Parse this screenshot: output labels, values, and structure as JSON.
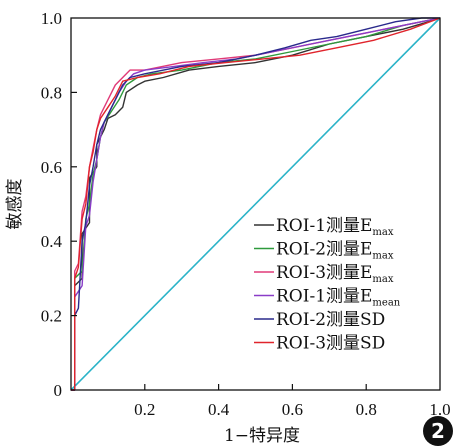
{
  "chart_data": {
    "type": "line",
    "title": "",
    "xlabel": "1−特异度",
    "ylabel": "敏感度",
    "xlim": [
      0,
      1
    ],
    "ylim": [
      0,
      1
    ],
    "xticks": [
      "0.2",
      "0.4",
      "0.6",
      "0.8",
      "1.0"
    ],
    "yticks": [
      "0",
      "0.2",
      "0.4",
      "0.6",
      "0.8",
      "1.0"
    ],
    "grid": false,
    "legend_position": "bottom-right",
    "reference_line": {
      "x": [
        0,
        1
      ],
      "y": [
        0,
        1
      ],
      "color": "#2bb3c8"
    },
    "series": [
      {
        "name": "ROI-1测量E",
        "sub": "max",
        "color": "#333333",
        "x": [
          0,
          0.01,
          0.01,
          0.03,
          0.03,
          0.05,
          0.05,
          0.07,
          0.07,
          0.09,
          0.1,
          0.12,
          0.14,
          0.15,
          0.18,
          0.2,
          0.25,
          0.32,
          0.4,
          0.5,
          0.6,
          0.7,
          0.8,
          0.9,
          0.97,
          1.0
        ],
        "y": [
          0,
          0,
          0.28,
          0.3,
          0.42,
          0.45,
          0.57,
          0.6,
          0.66,
          0.7,
          0.73,
          0.74,
          0.76,
          0.8,
          0.82,
          0.83,
          0.84,
          0.86,
          0.87,
          0.88,
          0.9,
          0.93,
          0.95,
          0.97,
          0.99,
          1.0
        ]
      },
      {
        "name": "ROI-2测量E",
        "sub": "max",
        "color": "#2e9a3c",
        "x": [
          0,
          0.01,
          0.01,
          0.03,
          0.04,
          0.05,
          0.06,
          0.07,
          0.08,
          0.09,
          0.11,
          0.13,
          0.15,
          0.18,
          0.22,
          0.3,
          0.4,
          0.5,
          0.6,
          0.7,
          0.8,
          0.9,
          1.0
        ],
        "y": [
          0,
          0,
          0.3,
          0.32,
          0.46,
          0.5,
          0.58,
          0.62,
          0.68,
          0.72,
          0.75,
          0.78,
          0.82,
          0.84,
          0.85,
          0.86,
          0.88,
          0.89,
          0.91,
          0.93,
          0.95,
          0.98,
          1.0
        ]
      },
      {
        "name": "ROI-3测量E",
        "sub": "max",
        "color": "#e03a78",
        "x": [
          0,
          0.01,
          0.01,
          0.02,
          0.03,
          0.04,
          0.05,
          0.06,
          0.07,
          0.08,
          0.1,
          0.12,
          0.14,
          0.16,
          0.2,
          0.3,
          0.4,
          0.5,
          0.6,
          0.7,
          0.8,
          0.9,
          1.0
        ],
        "y": [
          0,
          0,
          0.32,
          0.34,
          0.48,
          0.52,
          0.6,
          0.65,
          0.7,
          0.74,
          0.78,
          0.82,
          0.84,
          0.86,
          0.86,
          0.88,
          0.89,
          0.9,
          0.92,
          0.94,
          0.96,
          0.98,
          1.0
        ]
      },
      {
        "name": "ROI-1测量E",
        "sub": "mean",
        "color": "#8a3cc8",
        "x": [
          0,
          0.01,
          0.01,
          0.03,
          0.04,
          0.05,
          0.06,
          0.07,
          0.08,
          0.09,
          0.11,
          0.13,
          0.15,
          0.17,
          0.2,
          0.28,
          0.36,
          0.45,
          0.55,
          0.65,
          0.75,
          0.85,
          0.95,
          1.0
        ],
        "y": [
          0,
          0,
          0.25,
          0.28,
          0.44,
          0.47,
          0.56,
          0.62,
          0.68,
          0.72,
          0.76,
          0.8,
          0.83,
          0.85,
          0.86,
          0.87,
          0.88,
          0.89,
          0.91,
          0.93,
          0.95,
          0.97,
          0.99,
          1.0
        ]
      },
      {
        "name": "ROI-2测量SD",
        "sub": "",
        "color": "#2a2a8c",
        "x": [
          0,
          0.01,
          0.01,
          0.02,
          0.03,
          0.04,
          0.05,
          0.06,
          0.07,
          0.08,
          0.1,
          0.12,
          0.14,
          0.16,
          0.2,
          0.3,
          0.4,
          0.5,
          0.58,
          0.65,
          0.72,
          0.8,
          0.88,
          0.95,
          1.0
        ],
        "y": [
          0,
          0,
          0.2,
          0.22,
          0.4,
          0.45,
          0.55,
          0.6,
          0.66,
          0.7,
          0.74,
          0.78,
          0.82,
          0.84,
          0.85,
          0.87,
          0.88,
          0.9,
          0.92,
          0.94,
          0.95,
          0.97,
          0.99,
          1.0,
          1.0
        ]
      },
      {
        "name": "ROI-3测量SD",
        "sub": "",
        "color": "#e0242c",
        "x": [
          0,
          0.01,
          0.01,
          0.02,
          0.03,
          0.04,
          0.05,
          0.06,
          0.07,
          0.08,
          0.1,
          0.12,
          0.14,
          0.18,
          0.24,
          0.32,
          0.42,
          0.52,
          0.62,
          0.72,
          0.82,
          0.92,
          1.0
        ],
        "y": [
          0,
          0,
          0.3,
          0.33,
          0.46,
          0.5,
          0.6,
          0.64,
          0.7,
          0.73,
          0.76,
          0.79,
          0.83,
          0.84,
          0.85,
          0.87,
          0.88,
          0.89,
          0.9,
          0.92,
          0.94,
          0.97,
          1.0
        ]
      }
    ]
  },
  "badge": "2"
}
